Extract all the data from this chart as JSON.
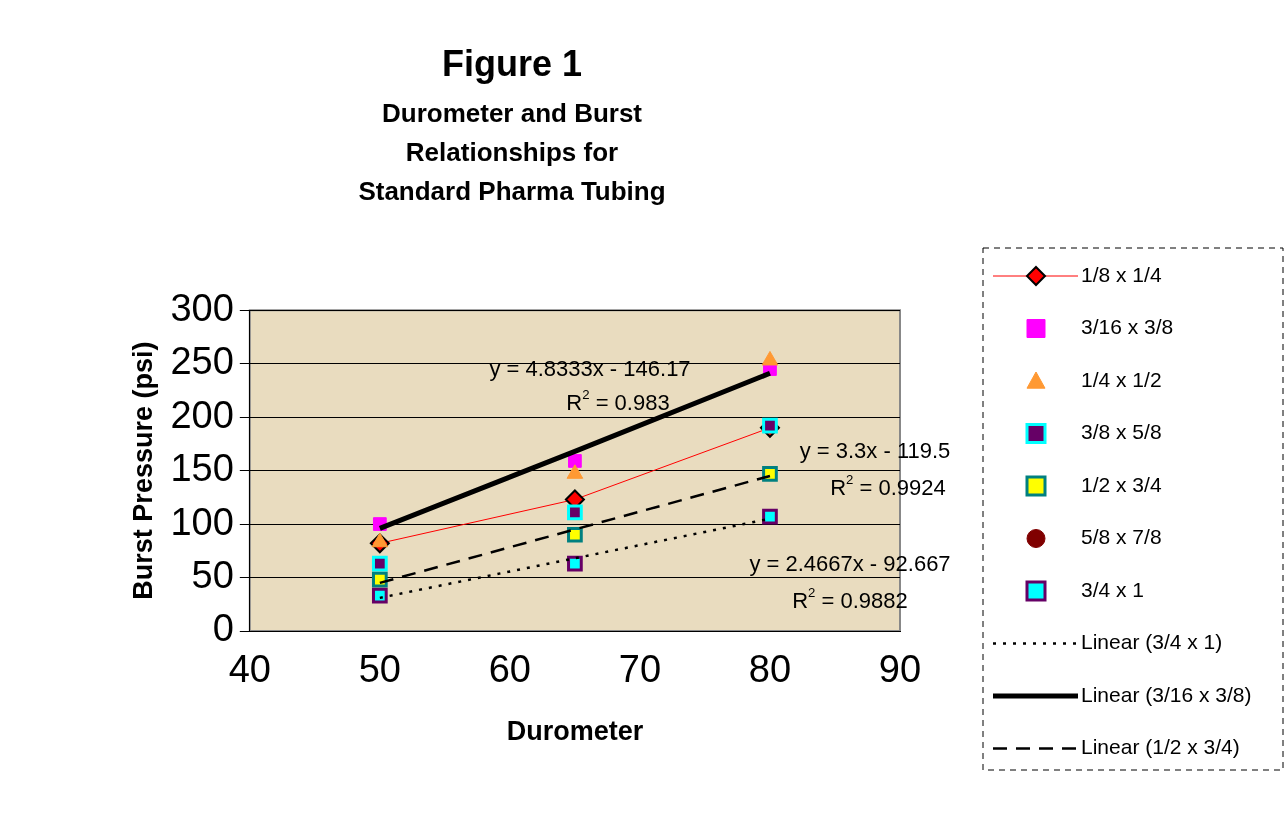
{
  "chart_data": {
    "type": "scatter",
    "title": "Figure 1",
    "subtitle": "Durometer and Burst\nRelationships for\nStandard Pharma Tubing",
    "xlabel": "Durometer",
    "ylabel": "Burst Pressure (psi)",
    "x": [
      50,
      65,
      80
    ],
    "series": [
      {
        "name": "1/8 x 1/4",
        "type": "line",
        "color": "#ff0000",
        "marker": "diamond",
        "values": [
          82,
          123,
          190
        ]
      },
      {
        "name": "3/16 x 3/8",
        "color": "#ff00ff",
        "marker": "square",
        "values": [
          100,
          159,
          245
        ]
      },
      {
        "name": "1/4 x 1/2",
        "color": "#ff9933",
        "marker": "triangle",
        "values": [
          83,
          147,
          253
        ]
      },
      {
        "name": "3/8 x 5/8",
        "color": "#660066",
        "marker": "square",
        "values": [
          63,
          111,
          192
        ]
      },
      {
        "name": "1/2 x 3/4",
        "color": "#ffff00",
        "marker": "square",
        "values": [
          48,
          90,
          147
        ]
      },
      {
        "name": "5/8 x 7/8",
        "color": "#800000",
        "marker": "circle",
        "values": [
          null,
          null,
          null
        ]
      },
      {
        "name": "3/4 x 1",
        "color": "#00ffff",
        "marker": "square",
        "values": [
          33,
          63,
          107
        ]
      },
      {
        "name": "Linear (3/4 x 1)",
        "type": "line",
        "color": "#000000",
        "marker": "none",
        "line_style": "dotted",
        "x": [
          50,
          65,
          80
        ],
        "values": [
          31,
          68,
          105
        ]
      },
      {
        "name": "Linear (3/16 x 3/8)",
        "type": "line",
        "color": "#000000",
        "marker": "none",
        "line_style": "solid",
        "x": [
          50,
          65,
          80
        ],
        "values": [
          96,
          168,
          241
        ]
      },
      {
        "name": "Linear (1/2 x 3/4)",
        "type": "line",
        "color": "#000000",
        "marker": "none",
        "line_style": "dashed",
        "x": [
          50,
          65,
          80
        ],
        "values": [
          45,
          95,
          145
        ]
      }
    ],
    "xlim": [
      40,
      90
    ],
    "xticks": [
      40,
      50,
      60,
      70,
      80,
      90
    ],
    "ylim": [
      0,
      300
    ],
    "yticks": [
      0,
      50,
      100,
      150,
      200,
      250,
      300
    ],
    "grid": "y",
    "legend": "right",
    "annotations": [
      "y = 4.8333x - 146.17",
      "R$^{2}$ = 0.983",
      "y = 3.3x - 119.5",
      "R$^{2}$ = 0.9924",
      "y = 2.4667x - 92.667",
      "R$^{2}$ = 0.9882"
    ]
  }
}
